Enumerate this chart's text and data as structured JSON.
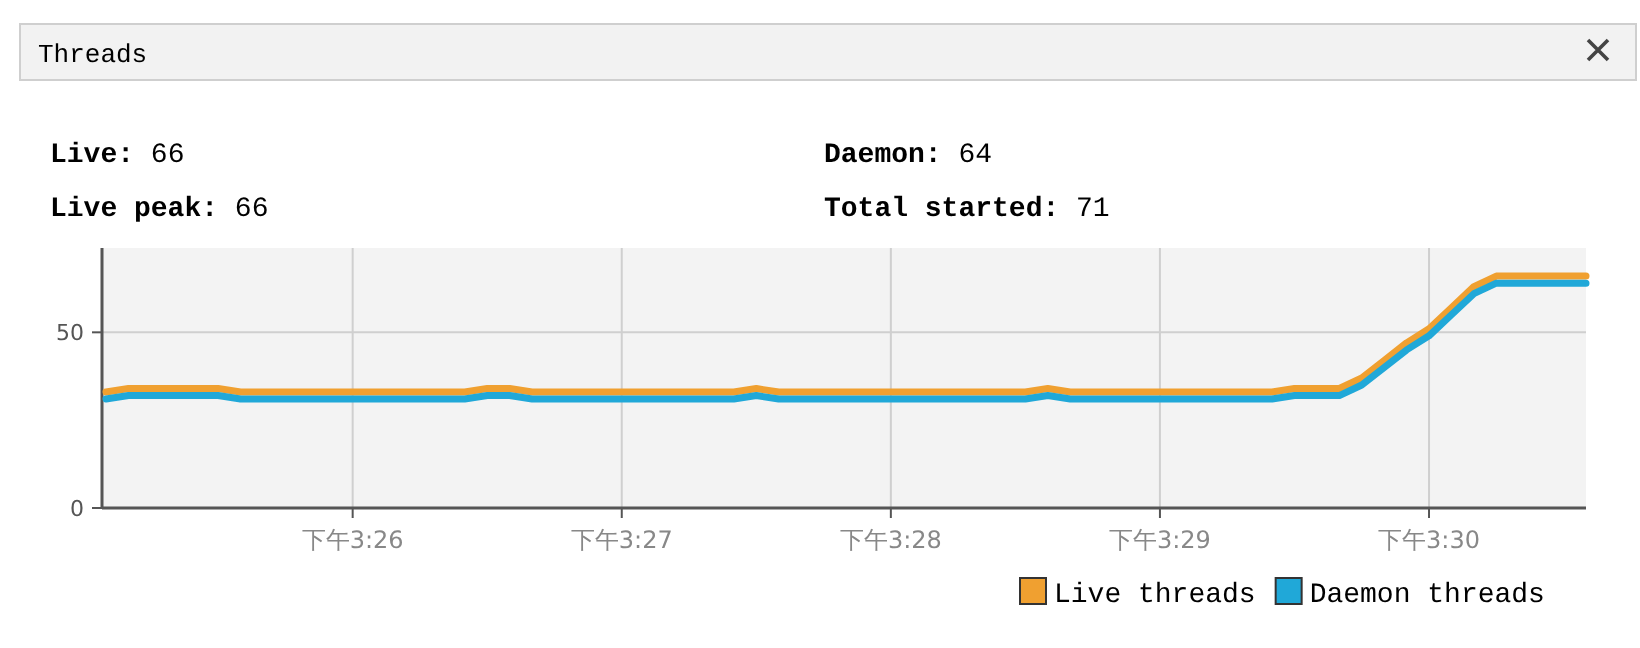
{
  "chart_data": {
    "type": "line",
    "title": "Threads",
    "annotations": [
      "**Live:** 66",
      "**Daemon:** 64",
      "**Live peak:** 66",
      "**Total started:** 71"
    ],
    "categories": [
      null,
      null,
      null,
      null,
      null,
      null,
      null,
      null,
      null,
      null,
      null,
      "下午3:26",
      null,
      null,
      null,
      null,
      null,
      null,
      null,
      null,
      null,
      null,
      null,
      "下午3:27",
      null,
      null,
      null,
      null,
      null,
      null,
      null,
      null,
      null,
      null,
      null,
      "下午3:28",
      null,
      null,
      null,
      null,
      null,
      null,
      null,
      null,
      null,
      null,
      null,
      "下午3:29",
      null,
      null,
      null,
      null,
      null,
      null,
      null,
      null,
      null,
      null,
      null,
      "下午3:30",
      null,
      null,
      null,
      null,
      null,
      null,
      null
    ],
    "series": [
      {
        "name": "Live threads",
        "color": "#f0a030",
        "values": [
          33,
          34,
          34,
          34,
          34,
          34,
          33,
          33,
          33,
          33,
          33,
          33,
          33,
          33,
          33,
          33,
          33,
          34,
          34,
          33,
          33,
          33,
          33,
          33,
          33,
          33,
          33,
          33,
          33,
          34,
          33,
          33,
          33,
          33,
          33,
          33,
          33,
          33,
          33,
          33,
          33,
          33,
          34,
          33,
          33,
          33,
          33,
          33,
          33,
          33,
          33,
          33,
          33,
          34,
          34,
          34,
          37,
          42,
          47,
          51,
          57,
          63,
          66,
          66,
          66,
          66,
          66
        ]
      },
      {
        "name": "Daemon threads",
        "color": "#20a8d8",
        "values": [
          31,
          32,
          32,
          32,
          32,
          32,
          31,
          31,
          31,
          31,
          31,
          31,
          31,
          31,
          31,
          31,
          31,
          32,
          32,
          31,
          31,
          31,
          31,
          31,
          31,
          31,
          31,
          31,
          31,
          32,
          31,
          31,
          31,
          31,
          31,
          31,
          31,
          31,
          31,
          31,
          31,
          31,
          32,
          31,
          31,
          31,
          31,
          31,
          31,
          31,
          31,
          31,
          31,
          32,
          32,
          32,
          35,
          40,
          45,
          49,
          55,
          61,
          64,
          64,
          64,
          64,
          64
        ]
      }
    ],
    "ylim": [
      0,
      74
    ],
    "yticks": [
      0,
      50
    ],
    "grid": true,
    "legend": "bottom right",
    "marker": "none",
    "line_style": "solid"
  }
}
